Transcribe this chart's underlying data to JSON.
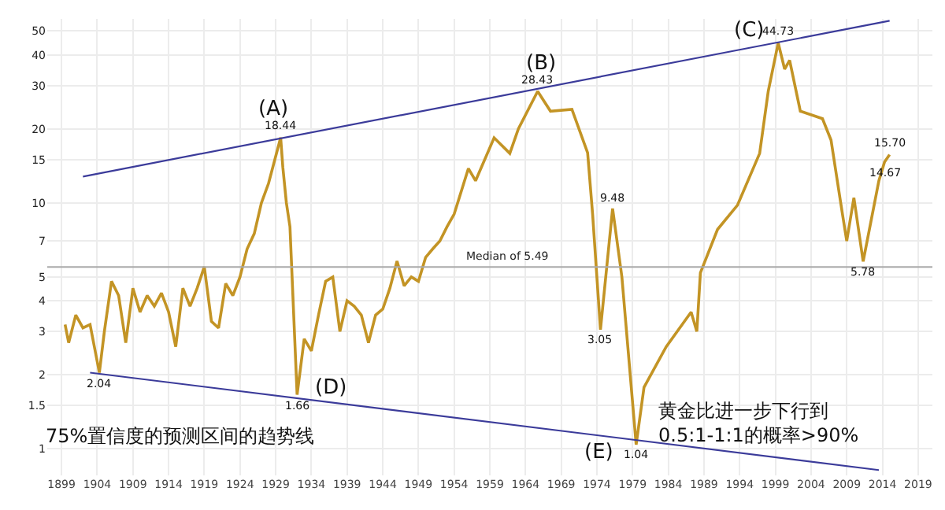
{
  "chart_data": {
    "type": "line",
    "xlim": [
      1897,
      2021
    ],
    "ylim": [
      0.78,
      56
    ],
    "log": "y",
    "grid": true,
    "marker": "none",
    "line_style": "solid",
    "xticks": [
      1899,
      1904,
      1909,
      1914,
      1919,
      1924,
      1929,
      1934,
      1939,
      1944,
      1949,
      1954,
      1959,
      1964,
      1969,
      1974,
      1979,
      1984,
      1989,
      1994,
      1999,
      2004,
      2009,
      2014,
      2019
    ],
    "yticks": [
      1,
      1.5,
      2,
      3,
      4,
      5,
      7,
      10,
      15,
      20,
      30,
      40,
      50
    ],
    "series": [
      {
        "color": "#c39425",
        "x": [
          1899.5,
          1900,
          1901,
          1902,
          1903,
          1904.3,
          1905,
          1906,
          1907,
          1908,
          1909,
          1910,
          1911,
          1912,
          1913,
          1914,
          1915,
          1916,
          1917,
          1918,
          1919,
          1920,
          1921,
          1922,
          1923,
          1924,
          1925,
          1926,
          1927,
          1928,
          1929.7,
          1930,
          1930.5,
          1931,
          1932,
          1933,
          1934,
          1935,
          1936,
          1937,
          1938,
          1939,
          1940,
          1941,
          1942,
          1943,
          1944,
          1945,
          1946,
          1947,
          1948,
          1949,
          1950,
          1951,
          1952,
          1953,
          1954,
          1956,
          1957,
          1959.6,
          1961.8,
          1963,
          1965.7,
          1967.5,
          1970.5,
          1972.7,
          1973.4,
          1974.5,
          1976.2,
          1977.5,
          1979.5,
          1980.6,
          1983.7,
          1987.2,
          1988,
          1988.5,
          1990.9,
          1993.7,
          1996.8,
          1998,
          1999.4,
          2000.3,
          2001,
          2002.5,
          2005.6,
          2006.8,
          2008.4,
          2009,
          2010,
          2011.3,
          2013.5,
          2014.3,
          2015
        ],
        "values": [
          3.2,
          2.7,
          3.5,
          3.1,
          3.2,
          2.04,
          3.0,
          4.8,
          4.2,
          2.7,
          4.5,
          3.6,
          4.2,
          3.8,
          4.3,
          3.6,
          2.6,
          4.5,
          3.8,
          4.5,
          5.5,
          3.3,
          3.1,
          4.7,
          4.2,
          5.0,
          6.5,
          7.5,
          10,
          12,
          18.44,
          14,
          10,
          8,
          1.66,
          2.8,
          2.5,
          3.5,
          4.8,
          5.0,
          3.0,
          4.0,
          3.8,
          3.5,
          2.7,
          3.5,
          3.7,
          4.5,
          5.8,
          4.6,
          5.0,
          4.8,
          6.0,
          6.5,
          7,
          8,
          9,
          13.8,
          12.3,
          18.4,
          15.9,
          20,
          28.43,
          23.6,
          24,
          16,
          9,
          3.05,
          9.48,
          5,
          1.04,
          1.78,
          2.6,
          3.6,
          3.0,
          5.2,
          7.8,
          9.8,
          15.9,
          28.4,
          44.73,
          35,
          38,
          23.6,
          22,
          18,
          9,
          7,
          10.5,
          5.78,
          12.3,
          14.67,
          15.7
        ]
      },
      {
        "type": "line",
        "color": "#3b3b9a",
        "x": [
          1902,
          2015
        ],
        "values": [
          12.8,
          55
        ]
      },
      {
        "type": "line",
        "color": "#3b3b9a",
        "x": [
          1903,
          2013.5
        ],
        "values": [
          2.04,
          0.82
        ]
      }
    ],
    "ref_lines": [
      {
        "axis": "y",
        "value": 5.49,
        "label": "Median of 5.49",
        "color": "#aaaaaa"
      }
    ],
    "annotations": [
      {
        "text": "18.44",
        "x": 1929.7,
        "y": 18.44
      },
      {
        "text": "28.43",
        "x": 1965.7,
        "y": 28.43
      },
      {
        "text": "44.73",
        "x": 1999.4,
        "y": 44.73
      },
      {
        "text": "15.70",
        "x": 2015,
        "y": 15.7
      },
      {
        "text": "14.67",
        "x": 2014.3,
        "y": 14.67
      },
      {
        "text": "9.48",
        "x": 1976.2,
        "y": 9.48
      },
      {
        "text": "3.05",
        "x": 1974.5,
        "y": 3.05
      },
      {
        "text": "1.04",
        "x": 1979.5,
        "y": 1.04
      },
      {
        "text": "2.04",
        "x": 1904.3,
        "y": 2.04
      },
      {
        "text": "1.66",
        "x": 1932,
        "y": 1.66
      },
      {
        "text": "5.78",
        "x": 2011.3,
        "y": 5.78
      },
      "(A)",
      "(B)",
      "(C)",
      "(D)",
      "(E)",
      "75%置信度的预测区间的趋势线",
      "黄金比进一步下行到\n0.5:1-1:1的概率>90%"
    ]
  }
}
